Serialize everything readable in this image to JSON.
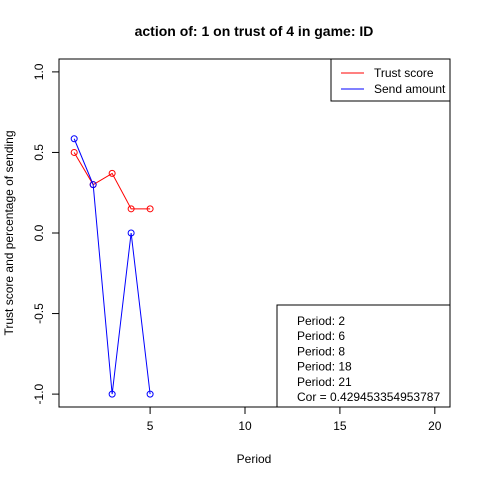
{
  "chart_data": {
    "type": "line",
    "title": "action of:  1  on trust of  4 in game:  ID",
    "xlabel": "Period",
    "ylabel": "Trust score and percentage of sending",
    "xlim": [
      0.2,
      20.8
    ],
    "ylim": [
      -1.08,
      1.08
    ],
    "xticks": [
      5,
      10,
      15,
      20
    ],
    "xtick_labels": [
      "5",
      "10",
      "15",
      "20"
    ],
    "yticks": [
      -1.0,
      -0.5,
      0.0,
      0.5,
      1.0
    ],
    "ytick_labels": [
      "-1.0",
      "-0.5",
      "0.0",
      "0.5",
      "1.0"
    ],
    "grid": false,
    "series": [
      {
        "name": "Trust score",
        "color": "#ff0000",
        "x": [
          1,
          2,
          3,
          4,
          5
        ],
        "y": [
          0.5,
          0.3,
          0.37,
          0.15,
          0.15
        ]
      },
      {
        "name": "Send amount",
        "color": "#0000ff",
        "x": [
          1,
          2,
          3,
          4,
          5
        ],
        "y": [
          0.585,
          0.3,
          -1.0,
          0.0,
          -1.0
        ]
      }
    ],
    "legend": {
      "position": "top-right"
    },
    "annotation": {
      "position": "bottom-right",
      "lines": [
        "Period:  2",
        "Period:  6",
        "Period:  8",
        "Period:  18",
        "Period:  21",
        "Cor =  0.429453354953787"
      ]
    }
  }
}
